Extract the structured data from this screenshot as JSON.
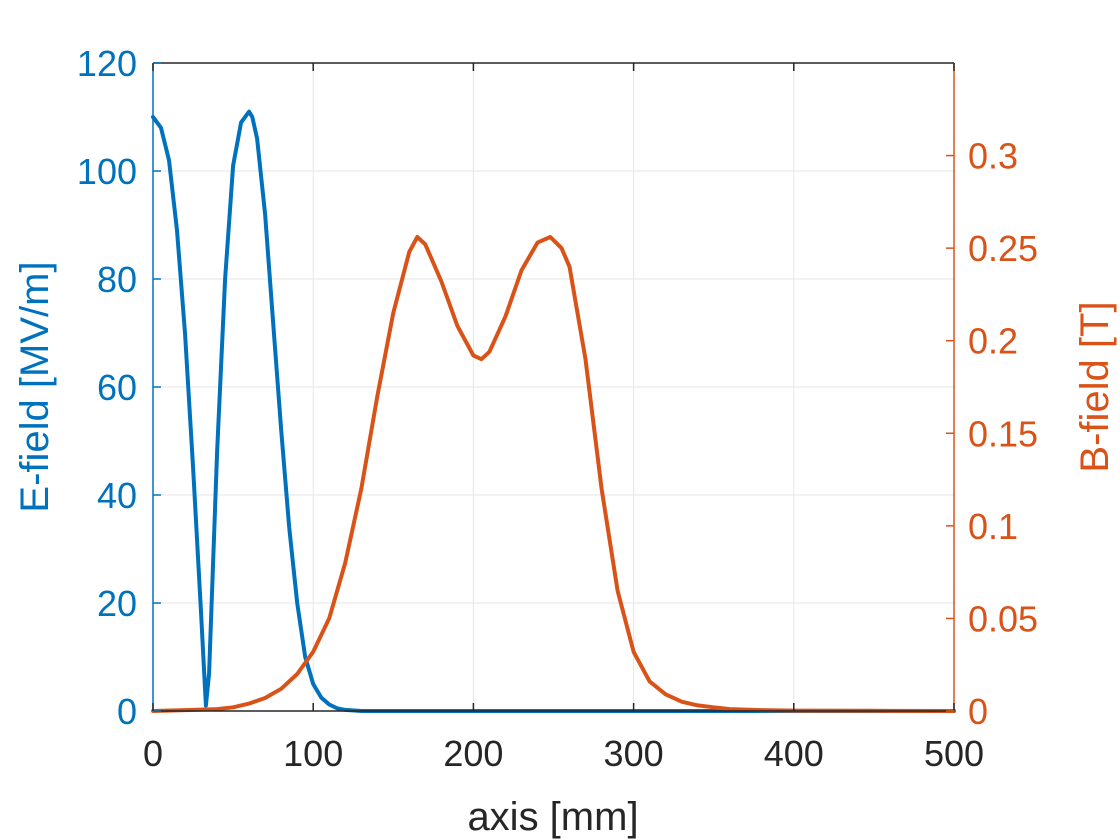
{
  "chart_data": {
    "type": "line",
    "xlabel": "axis [mm]",
    "ylabel_left": "E-field [MV/m]",
    "ylabel_right": "B-field [T]",
    "xlim": [
      0,
      500
    ],
    "ylim_left": [
      0,
      120
    ],
    "ylim_right": [
      0,
      0.35
    ],
    "x_ticks": [
      "0",
      "100",
      "200",
      "300",
      "400",
      "500"
    ],
    "y_ticks_left": [
      "0",
      "20",
      "40",
      "60",
      "80",
      "100",
      "120"
    ],
    "y_ticks_right": [
      "0",
      "0.05",
      "0.1",
      "0.15",
      "0.2",
      "0.25",
      "0.3"
    ],
    "grid": true,
    "colors": {
      "left": "#0072BD",
      "right": "#D95319",
      "axis": "#262626",
      "grid": "#e6e6e6"
    },
    "series": [
      {
        "axis": "left",
        "x": [
          0,
          5,
          10,
          15,
          20,
          25,
          30,
          33,
          35,
          40,
          45,
          50,
          55,
          60,
          62,
          65,
          70,
          75,
          80,
          85,
          90,
          95,
          100,
          105,
          110,
          115,
          120,
          130,
          140,
          500
        ],
        "y": [
          110,
          108,
          102,
          89,
          70,
          45,
          18,
          1,
          7,
          48,
          80,
          101,
          109,
          111,
          110,
          106,
          92,
          72,
          52,
          34,
          20,
          10,
          5,
          2.5,
          1.2,
          0.5,
          0.2,
          0,
          0,
          0
        ]
      },
      {
        "axis": "right",
        "x": [
          0,
          20,
          40,
          50,
          60,
          70,
          80,
          90,
          100,
          110,
          120,
          130,
          140,
          150,
          160,
          165,
          170,
          180,
          190,
          200,
          205,
          210,
          220,
          230,
          240,
          248,
          255,
          260,
          270,
          280,
          290,
          300,
          310,
          320,
          330,
          340,
          350,
          360,
          380,
          400,
          450,
          500
        ],
        "y": [
          0,
          0.0005,
          0.001,
          0.002,
          0.004,
          0.007,
          0.012,
          0.02,
          0.032,
          0.05,
          0.08,
          0.12,
          0.17,
          0.215,
          0.248,
          0.256,
          0.252,
          0.232,
          0.208,
          0.192,
          0.19,
          0.194,
          0.213,
          0.238,
          0.253,
          0.256,
          0.25,
          0.24,
          0.19,
          0.12,
          0.065,
          0.032,
          0.016,
          0.009,
          0.005,
          0.003,
          0.002,
          0.001,
          0.0005,
          0.0002,
          0.0001,
          0
        ]
      }
    ]
  }
}
